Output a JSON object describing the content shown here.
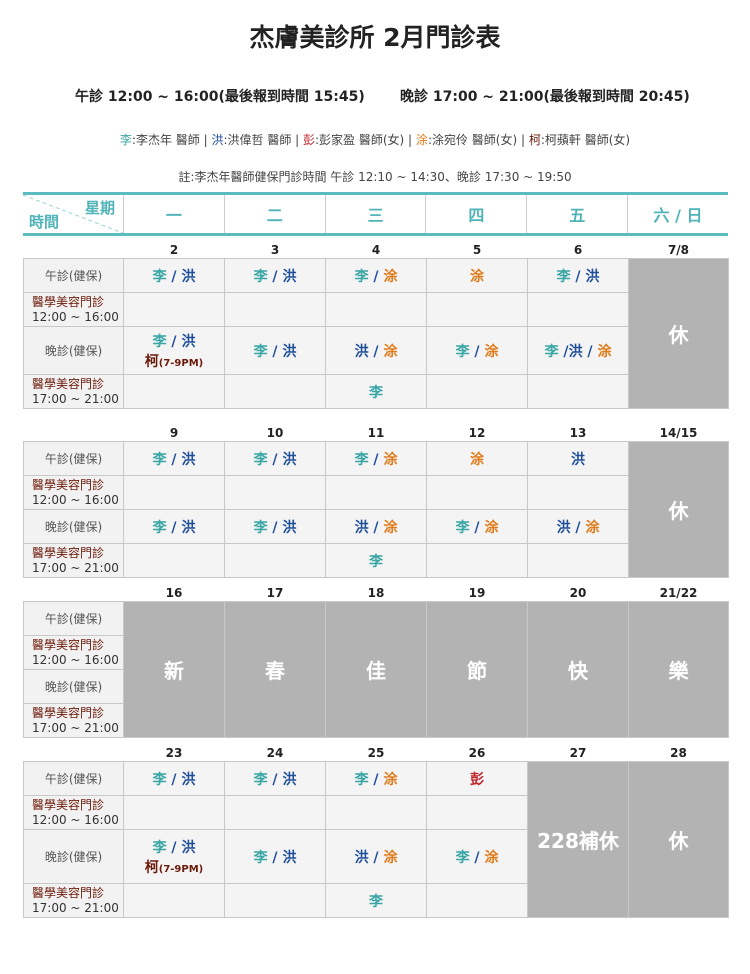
{
  "title": "杰膚美診所 2月門診表",
  "hours": {
    "noon": "午診 12:00 ~ 16:00(最後報到時間 15:45)",
    "evening": "晚診 17:00 ~ 21:00(最後報到時間 20:45)"
  },
  "legend": [
    {
      "key": "李",
      "text": ":李杰年 醫師 | "
    },
    {
      "key": "洪",
      "text": ":洪偉哲 醫師 | "
    },
    {
      "key": "彭",
      "text": ":彭家盈 醫師(女) | "
    },
    {
      "key": "涂",
      "text": ":涂宛伶 醫師(女) | "
    },
    {
      "key": "柯",
      "text": ":柯蘋軒 醫師(女)"
    }
  ],
  "note": "註:李杰年醫師健保門診時間 午診 12:10 ~ 14:30、晚診 17:30 ~ 19:50",
  "doctor_colors": {
    "李": "#3aa6a6",
    "洪": "#1f4e9a",
    "涂": "#e07b1a",
    "彭": "#c0272d",
    "柯": "#6b1a0a"
  },
  "header": {
    "weekday_label": "星期",
    "time_label": "時間",
    "days": [
      "一",
      "二",
      "三",
      "四",
      "五",
      "六 / 日"
    ]
  },
  "row_labels": [
    {
      "name": "午診(健保)"
    },
    {
      "name": "醫學美容門診",
      "time": "12:00 ~ 16:00"
    },
    {
      "name": "晚診(健保)"
    },
    {
      "name": "醫學美容門診",
      "time": "17:00 ~ 21:00"
    }
  ],
  "weeks": [
    {
      "dates": [
        "2",
        "3",
        "4",
        "5",
        "6",
        "7/8"
      ],
      "rows": [
        [
          "李 / 洪",
          "李 / 洪",
          "李 / 涂",
          "涂",
          "李 / 洪"
        ],
        [
          "",
          "",
          "",
          "",
          ""
        ],
        [
          [
            "李 / 洪",
            "柯(7-9PM)"
          ],
          "李 / 洪",
          "洪 / 涂",
          "李 / 涂",
          "李 /洪 / 涂"
        ],
        [
          "",
          "",
          "李",
          "",
          ""
        ]
      ],
      "closed": {
        "5": "休"
      }
    },
    {
      "dates": [
        "9",
        "10",
        "11",
        "12",
        "13",
        "14/15"
      ],
      "rows": [
        [
          "李 / 洪",
          "李 / 洪",
          "李 / 涂",
          "涂",
          "洪"
        ],
        [
          "",
          "",
          "",
          "",
          ""
        ],
        [
          "李 / 洪",
          "李 / 洪",
          "洪 / 涂",
          "李 / 涂",
          "洪 / 涂"
        ],
        [
          "",
          "",
          "李",
          "",
          ""
        ]
      ],
      "closed": {
        "5": "休"
      }
    },
    {
      "dates": [
        "16",
        "17",
        "18",
        "19",
        "20",
        "21/22"
      ],
      "rows": [
        [],
        [],
        [],
        []
      ],
      "closed": {
        "0": "新",
        "1": "春",
        "2": "佳",
        "3": "節",
        "4": "快",
        "5": "樂"
      }
    },
    {
      "dates": [
        "23",
        "24",
        "25",
        "26",
        "27",
        "28"
      ],
      "rows": [
        [
          "李 / 洪",
          "李 / 洪",
          "李 / 涂",
          "彭"
        ],
        [
          "",
          "",
          "",
          ""
        ],
        [
          [
            "李 / 洪",
            "柯(7-9PM)"
          ],
          "李 / 洪",
          "洪 / 涂",
          "李 / 涂"
        ],
        [
          "",
          "",
          "李",
          ""
        ]
      ],
      "closed": {
        "4": "228補休",
        "5": "休"
      }
    }
  ]
}
